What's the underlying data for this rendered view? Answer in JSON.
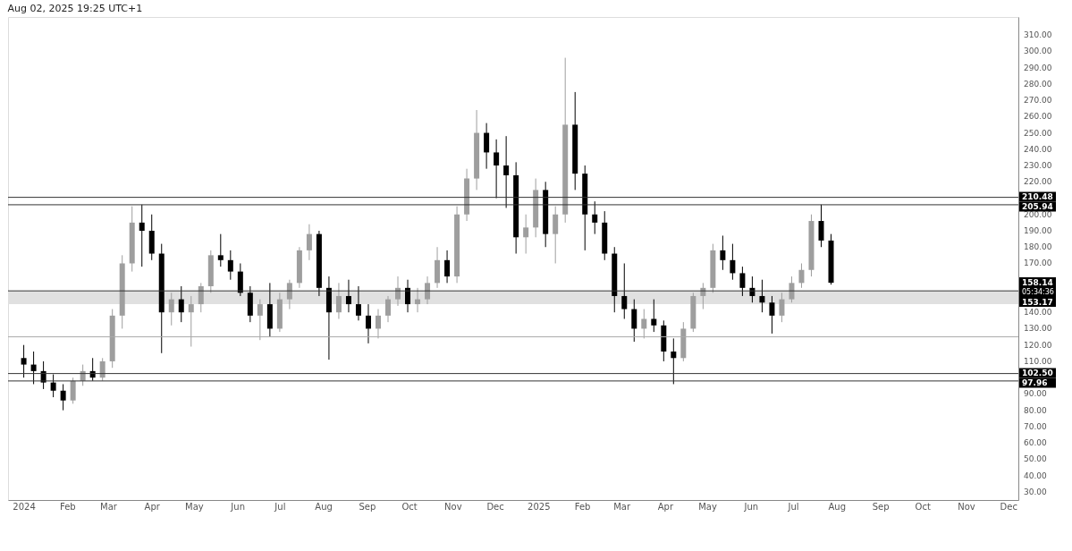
{
  "chart_data": {
    "type": "candlestick",
    "annotations": [
      "Aug 02, 2025 19:25 UTC+1",
      "158.14",
      "05:34:36"
    ],
    "colors": [
      "#000000",
      "#000000",
      "#000000",
      "#000000",
      "#000000",
      "#9e9e9e",
      "#9e9e9e",
      "#000000",
      "#9e9e9e",
      "#9e9e9e",
      "#9e9e9e",
      "#9e9e9e",
      "#000000",
      "#000000",
      "#000000",
      "#9e9e9e",
      "#000000",
      "#9e9e9e",
      "#9e9e9e",
      "#9e9e9e",
      "#000000",
      "#000000",
      "#000000",
      "#000000",
      "#9e9e9e",
      "#000000",
      "#9e9e9e",
      "#9e9e9e",
      "#9e9e9e",
      "#9e9e9e",
      "#000000",
      "#000000",
      "#9e9e9e",
      "#000000",
      "#000000",
      "#000000",
      "#9e9e9e",
      "#9e9e9e",
      "#9e9e9e",
      "#000000",
      "#9e9e9e",
      "#9e9e9e",
      "#9e9e9e",
      "#000000",
      "#9e9e9e",
      "#9e9e9e",
      "#9e9e9e",
      "#000000",
      "#000000",
      "#000000",
      "#000000",
      "#9e9e9e",
      "#9e9e9e",
      "#000000",
      "#9e9e9e",
      "#9e9e9e",
      "#000000",
      "#000000",
      "#000000",
      "#000000",
      "#000000",
      "#000000",
      "#000000",
      "#9e9e9e",
      "#000000",
      "#000000",
      "#000000",
      "#9e9e9e",
      "#9e9e9e",
      "#9e9e9e",
      "#9e9e9e",
      "#000000",
      "#000000",
      "#000000",
      "#000000",
      "#000000",
      "#000000",
      "#9e9e9e",
      "#9e9e9e",
      "#9e9e9e",
      "#9e9e9e",
      "#000000",
      "#000000"
    ],
    "x": [
      "2024-01-01",
      "2024-01-08",
      "2024-01-15",
      "2024-01-22",
      "2024-01-29",
      "2024-02-05",
      "2024-02-12",
      "2024-02-19",
      "2024-02-26",
      "2024-03-04",
      "2024-03-11",
      "2024-03-18",
      "2024-03-25",
      "2024-04-01",
      "2024-04-08",
      "2024-04-15",
      "2024-04-22",
      "2024-04-29",
      "2024-05-06",
      "2024-05-13",
      "2024-05-20",
      "2024-05-27",
      "2024-06-03",
      "2024-06-10",
      "2024-06-17",
      "2024-06-24",
      "2024-07-01",
      "2024-07-08",
      "2024-07-15",
      "2024-07-22",
      "2024-07-29",
      "2024-08-05",
      "2024-08-12",
      "2024-08-19",
      "2024-08-26",
      "2024-09-02",
      "2024-09-09",
      "2024-09-16",
      "2024-09-23",
      "2024-09-30",
      "2024-10-07",
      "2024-10-14",
      "2024-10-21",
      "2024-10-28",
      "2024-11-04",
      "2024-11-11",
      "2024-11-18",
      "2024-11-25",
      "2024-12-02",
      "2024-12-09",
      "2024-12-16",
      "2024-12-23",
      "2024-12-30",
      "2025-01-06",
      "2025-01-13",
      "2025-01-20",
      "2025-01-27",
      "2025-02-03",
      "2025-02-10",
      "2025-02-17",
      "2025-02-24",
      "2025-03-03",
      "2025-03-10",
      "2025-03-17",
      "2025-03-24",
      "2025-03-31",
      "2025-04-07",
      "2025-04-14",
      "2025-04-21",
      "2025-04-28",
      "2025-05-05",
      "2025-05-12",
      "2025-05-19",
      "2025-05-26",
      "2025-06-02",
      "2025-06-09",
      "2025-06-16",
      "2025-06-23",
      "2025-06-30",
      "2025-07-07",
      "2025-07-14",
      "2025-07-21",
      "2025-07-28"
    ],
    "ohlc": [
      [
        112,
        120,
        100,
        108
      ],
      [
        108,
        116,
        96,
        104
      ],
      [
        104,
        110,
        93,
        97
      ],
      [
        97,
        102,
        88,
        92
      ],
      [
        92,
        96,
        80,
        86
      ],
      [
        86,
        100,
        84,
        98
      ],
      [
        98,
        108,
        95,
        104
      ],
      [
        104,
        112,
        98,
        100
      ],
      [
        100,
        112,
        98,
        110
      ],
      [
        110,
        142,
        106,
        138
      ],
      [
        138,
        175,
        130,
        170
      ],
      [
        170,
        205,
        165,
        195
      ],
      [
        195,
        206,
        168,
        190
      ],
      [
        190,
        200,
        172,
        176
      ],
      [
        176,
        182,
        115,
        140
      ],
      [
        140,
        152,
        132,
        148
      ],
      [
        148,
        156,
        134,
        140
      ],
      [
        140,
        150,
        119,
        145
      ],
      [
        145,
        158,
        140,
        156
      ],
      [
        156,
        178,
        152,
        175
      ],
      [
        175,
        188,
        168,
        172
      ],
      [
        172,
        178,
        160,
        165
      ],
      [
        165,
        170,
        150,
        152
      ],
      [
        152,
        156,
        134,
        138
      ],
      [
        138,
        148,
        123,
        145
      ],
      [
        145,
        158,
        125,
        130
      ],
      [
        130,
        152,
        128,
        148
      ],
      [
        148,
        160,
        142,
        158
      ],
      [
        158,
        180,
        155,
        178
      ],
      [
        178,
        194,
        172,
        188
      ],
      [
        188,
        190,
        150,
        155
      ],
      [
        155,
        162,
        111,
        140
      ],
      [
        140,
        158,
        136,
        150
      ],
      [
        150,
        160,
        140,
        145
      ],
      [
        145,
        156,
        135,
        138
      ],
      [
        138,
        145,
        121,
        130
      ],
      [
        130,
        142,
        124,
        138
      ],
      [
        138,
        150,
        134,
        148
      ],
      [
        148,
        162,
        144,
        155
      ],
      [
        155,
        160,
        140,
        145
      ],
      [
        145,
        155,
        140,
        148
      ],
      [
        148,
        162,
        145,
        158
      ],
      [
        158,
        180,
        155,
        172
      ],
      [
        172,
        178,
        158,
        162
      ],
      [
        162,
        205,
        158,
        200
      ],
      [
        200,
        228,
        196,
        222
      ],
      [
        222,
        264,
        215,
        250
      ],
      [
        250,
        256,
        228,
        238
      ],
      [
        238,
        246,
        210,
        230
      ],
      [
        230,
        248,
        204,
        224
      ],
      [
        224,
        232,
        176,
        186
      ],
      [
        186,
        200,
        176,
        192
      ],
      [
        192,
        222,
        186,
        215
      ],
      [
        215,
        220,
        180,
        188
      ],
      [
        188,
        205,
        170,
        200
      ],
      [
        200,
        296,
        195,
        255
      ],
      [
        255,
        275,
        215,
        225
      ],
      [
        225,
        230,
        178,
        200
      ],
      [
        200,
        208,
        188,
        195
      ],
      [
        195,
        202,
        172,
        176
      ],
      [
        176,
        180,
        140,
        150
      ],
      [
        150,
        170,
        136,
        142
      ],
      [
        142,
        148,
        122,
        130
      ],
      [
        130,
        142,
        124,
        136
      ],
      [
        136,
        148,
        128,
        132
      ],
      [
        132,
        135,
        110,
        116
      ],
      [
        116,
        124,
        96,
        112
      ],
      [
        112,
        134,
        110,
        130
      ],
      [
        130,
        152,
        128,
        150
      ],
      [
        150,
        158,
        142,
        155
      ],
      [
        155,
        182,
        152,
        178
      ],
      [
        178,
        187,
        166,
        172
      ],
      [
        172,
        182,
        160,
        164
      ],
      [
        164,
        168,
        150,
        155
      ],
      [
        155,
        162,
        146,
        150
      ],
      [
        150,
        160,
        140,
        146
      ],
      [
        146,
        150,
        127,
        138
      ],
      [
        138,
        152,
        134,
        148
      ],
      [
        148,
        162,
        146,
        158
      ],
      [
        158,
        170,
        155,
        166
      ],
      [
        166,
        200,
        162,
        196
      ],
      [
        196,
        206,
        180,
        184
      ],
      [
        184,
        188,
        157,
        158.14
      ]
    ],
    "xlim": [
      "2023-12-24",
      "2025-12-05"
    ],
    "xticks": [
      {
        "value": "2024-01-01",
        "label": "2024"
      },
      {
        "value": "2024-02-01",
        "label": "Feb"
      },
      {
        "value": "2024-03-01",
        "label": "Mar"
      },
      {
        "value": "2024-04-01",
        "label": "Apr"
      },
      {
        "value": "2024-05-01",
        "label": "May"
      },
      {
        "value": "2024-06-01",
        "label": "Jun"
      },
      {
        "value": "2024-07-01",
        "label": "Jul"
      },
      {
        "value": "2024-08-01",
        "label": "Aug"
      },
      {
        "value": "2024-09-01",
        "label": "Sep"
      },
      {
        "value": "2024-10-01",
        "label": "Oct"
      },
      {
        "value": "2024-11-01",
        "label": "Nov"
      },
      {
        "value": "2024-12-01",
        "label": "Dec"
      },
      {
        "value": "2025-01-01",
        "label": "2025"
      },
      {
        "value": "2025-02-01",
        "label": "Feb"
      },
      {
        "value": "2025-03-01",
        "label": "Mar"
      },
      {
        "value": "2025-04-01",
        "label": "Apr"
      },
      {
        "value": "2025-05-01",
        "label": "May"
      },
      {
        "value": "2025-06-01",
        "label": "Jun"
      },
      {
        "value": "2025-07-01",
        "label": "Jul"
      },
      {
        "value": "2025-08-01",
        "label": "Aug"
      },
      {
        "value": "2025-09-01",
        "label": "Sep"
      },
      {
        "value": "2025-10-01",
        "label": "Oct"
      },
      {
        "value": "2025-11-01",
        "label": "Nov"
      },
      {
        "value": "2025-12-01",
        "label": "Dec"
      }
    ],
    "ylim": [
      25,
      321
    ],
    "yticks": [
      {
        "value": 30,
        "label": "30.00"
      },
      {
        "value": 40,
        "label": "40.00"
      },
      {
        "value": 50,
        "label": "50.00"
      },
      {
        "value": 60,
        "label": "60.00"
      },
      {
        "value": 70,
        "label": "70.00"
      },
      {
        "value": 80,
        "label": "80.00"
      },
      {
        "value": 90,
        "label": "90.00"
      },
      {
        "value": 110,
        "label": "110.00"
      },
      {
        "value": 120,
        "label": "120.00"
      },
      {
        "value": 130,
        "label": "130.00"
      },
      {
        "value": 140,
        "label": "140.00"
      },
      {
        "value": 170,
        "label": "170.00"
      },
      {
        "value": 180,
        "label": "180.00"
      },
      {
        "value": 190,
        "label": "190.00"
      },
      {
        "value": 200,
        "label": "200.00"
      },
      {
        "value": 220,
        "label": "220.00"
      },
      {
        "value": 230,
        "label": "230.00"
      },
      {
        "value": 240,
        "label": "240.00"
      },
      {
        "value": 250,
        "label": "250.00"
      },
      {
        "value": 260,
        "label": "260.00"
      },
      {
        "value": 270,
        "label": "270.00"
      },
      {
        "value": 280,
        "label": "280.00"
      },
      {
        "value": 290,
        "label": "290.00"
      },
      {
        "value": 300,
        "label": "300.00"
      },
      {
        "value": 310,
        "label": "310.00"
      }
    ],
    "bands": [
      {
        "axis": "y",
        "from": 145,
        "to": 153.17,
        "color": "#e0e0e0"
      }
    ],
    "ref_lines": [
      {
        "axis": "y",
        "value": 210.48,
        "label": "210.48",
        "color": "#333333"
      },
      {
        "axis": "y",
        "value": 205.94,
        "label": "205.94",
        "color": "#333333"
      },
      {
        "axis": "y",
        "value": 153.17,
        "label": "153.17",
        "color": "#333333"
      },
      {
        "axis": "y",
        "value": 125,
        "label": null,
        "color": "#aaaaaa"
      },
      {
        "axis": "y",
        "value": 102.5,
        "label": "102.50",
        "color": "#333333"
      },
      {
        "axis": "y",
        "value": 97.96,
        "label": "97.96",
        "color": "#333333"
      }
    ]
  }
}
